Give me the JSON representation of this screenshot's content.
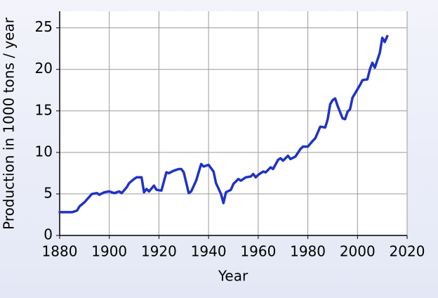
{
  "chart_data": {
    "type": "line",
    "xlabel": "Year",
    "ylabel": "Production in 1000 tons / year",
    "x": [
      1880,
      1885,
      1887,
      1888,
      1890,
      1893,
      1895,
      1896,
      1898,
      1900,
      1902,
      1904,
      1905,
      1907,
      1908,
      1910,
      1911,
      1913,
      1914,
      1915,
      1916,
      1918,
      1919,
      1921,
      1923,
      1924,
      1926,
      1928,
      1929,
      1930,
      1932,
      1933,
      1935,
      1937,
      1938,
      1939,
      1940,
      1942,
      1943,
      1945,
      1946,
      1947,
      1949,
      1950,
      1952,
      1953,
      1955,
      1957,
      1958,
      1959,
      1960,
      1962,
      1963,
      1965,
      1966,
      1968,
      1969,
      1970,
      1972,
      1973,
      1975,
      1977,
      1978,
      1980,
      1982,
      1983,
      1985,
      1987,
      1988,
      1989,
      1990,
      1991,
      1992,
      1994,
      1995,
      1996,
      1997,
      1998,
      2000,
      2001,
      2002,
      2004,
      2005,
      2006,
      2007,
      2009,
      2010,
      2011,
      2012
    ],
    "values": [
      2.8,
      2.8,
      3.0,
      3.5,
      4.0,
      5.0,
      5.1,
      4.9,
      5.2,
      5.3,
      5.1,
      5.3,
      5.1,
      5.8,
      6.3,
      6.8,
      7.0,
      7.0,
      5.2,
      5.6,
      5.3,
      6.0,
      5.5,
      5.4,
      7.6,
      7.5,
      7.8,
      8.0,
      8.0,
      7.6,
      5.1,
      5.3,
      6.6,
      8.6,
      8.3,
      8.4,
      8.5,
      7.7,
      6.3,
      5.0,
      3.9,
      5.2,
      5.5,
      6.2,
      6.8,
      6.6,
      7.0,
      7.1,
      7.4,
      7.0,
      7.3,
      7.7,
      7.6,
      8.2,
      8.0,
      9.1,
      9.3,
      9.0,
      9.6,
      9.2,
      9.5,
      10.4,
      10.7,
      10.7,
      11.4,
      11.7,
      13.1,
      13.0,
      14.0,
      15.8,
      16.3,
      16.5,
      15.6,
      14.1,
      14.0,
      14.9,
      15.2,
      16.6,
      17.6,
      18.1,
      18.7,
      18.8,
      20.0,
      20.8,
      20.2,
      22.0,
      23.8,
      23.3,
      24.0
    ],
    "color": "#1f33c4",
    "xlim": [
      1880,
      2020
    ],
    "xticks": [
      1880,
      1900,
      1920,
      1940,
      1960,
      1980,
      2000,
      2020
    ],
    "ylim": [
      0,
      27
    ],
    "yticks": [
      0,
      5,
      10,
      15,
      20,
      25
    ],
    "grid": true
  }
}
